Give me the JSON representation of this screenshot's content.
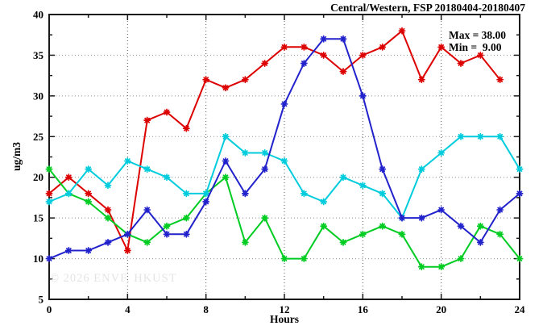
{
  "title": "Central/Western, FSP 20180404-20180407",
  "stats": {
    "max_label": "Max = 38.00",
    "min_label": "Min =  9.00"
  },
  "watermark": "© 2026 ENVF, HKUST",
  "chart_data": {
    "type": "line",
    "x": [
      0,
      1,
      2,
      3,
      4,
      5,
      6,
      7,
      8,
      9,
      10,
      11,
      12,
      13,
      14,
      15,
      16,
      17,
      18,
      19,
      20,
      21,
      22,
      23,
      24
    ],
    "series": [
      {
        "name": "series-red",
        "color": "#dd0000",
        "values": [
          18,
          20,
          18,
          16,
          11,
          27,
          28,
          26,
          32,
          31,
          32,
          34,
          36,
          36,
          35,
          33,
          35,
          36,
          38,
          32,
          36,
          34,
          35,
          32,
          null
        ]
      },
      {
        "name": "series-green",
        "color": "#00cc22",
        "values": [
          21,
          18,
          17,
          15,
          13,
          12,
          14,
          15,
          18,
          20,
          12,
          15,
          10,
          10,
          14,
          12,
          13,
          14,
          13,
          9,
          9,
          10,
          14,
          13,
          10
        ]
      },
      {
        "name": "series-cyan",
        "color": "#00ccdd",
        "values": [
          17,
          18,
          21,
          19,
          22,
          21,
          20,
          18,
          18,
          25,
          23,
          23,
          22,
          18,
          17,
          20,
          19,
          18,
          15,
          21,
          23,
          25,
          25,
          25,
          21
        ]
      },
      {
        "name": "series-blue",
        "color": "#2222cc",
        "values": [
          10,
          11,
          11,
          12,
          13,
          16,
          13,
          13,
          17,
          22,
          18,
          21,
          29,
          34,
          37,
          37,
          30,
          21,
          15,
          15,
          16,
          14,
          12,
          16,
          18
        ]
      }
    ],
    "title": "Central/Western, FSP 20180404-20180407",
    "xlabel": "Hours",
    "ylabel": "ug/m3",
    "xlim": [
      0,
      24
    ],
    "ylim": [
      5,
      40
    ],
    "xticks_major": [
      0,
      4,
      8,
      12,
      16,
      20,
      24
    ],
    "xticks_minor": [
      2,
      6,
      10,
      14,
      18,
      22
    ],
    "yticks_major": [
      5,
      10,
      15,
      20,
      25,
      30,
      35,
      40
    ],
    "yticks_minor": [
      7.5,
      12.5,
      17.5,
      22.5,
      27.5,
      32.5,
      37.5
    ],
    "grid_x": [
      4,
      8,
      12,
      16,
      20
    ],
    "grid_y": [
      10,
      15,
      20,
      25,
      30,
      35
    ],
    "grid": "dotted",
    "legend_position": "none",
    "marker": "star",
    "annotations": [
      "Max = 38.00",
      "Min =  9.00"
    ]
  },
  "colors": {
    "border": "#1a1a1a",
    "grid_vertical": "#555555",
    "grid_horizontal": "#909090",
    "background": "#ffffff",
    "watermark": "#e4e4e4"
  }
}
